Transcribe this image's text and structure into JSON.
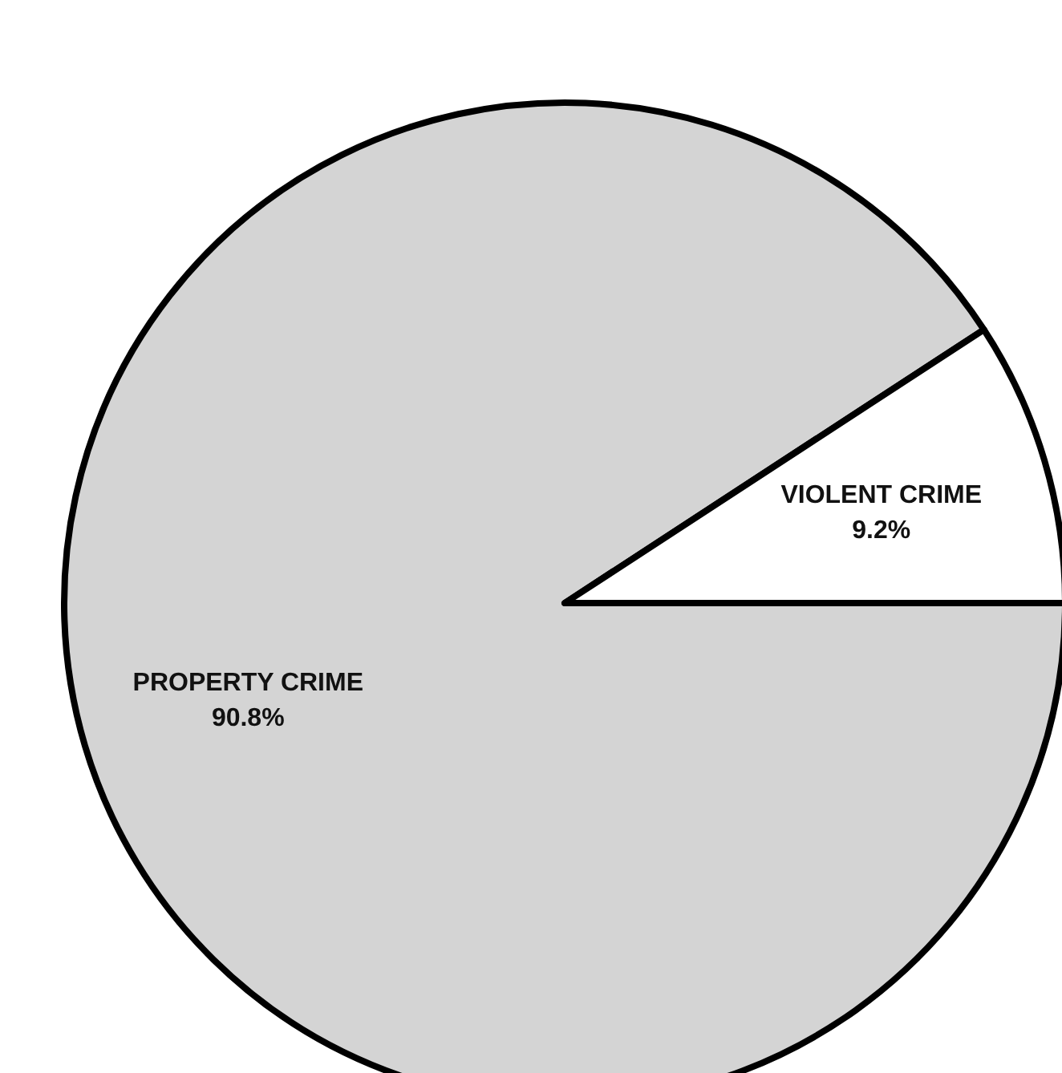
{
  "chart_data": {
    "type": "pie",
    "categories": [
      "PROPERTY CRIME",
      "VIOLENT CRIME"
    ],
    "values": [
      90.8,
      9.2
    ],
    "colors": [
      "#d4d4d4",
      "#ffffff"
    ],
    "value_labels": [
      "90.8%",
      "9.2%"
    ]
  }
}
